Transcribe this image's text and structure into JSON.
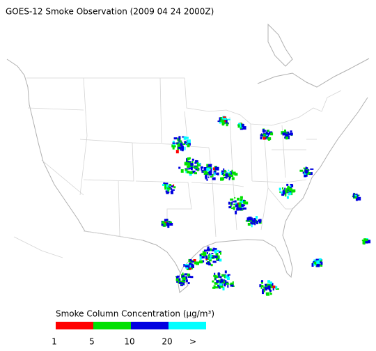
{
  "title": "GOES-12 Smoke Observation (2009 04 24  2000Z)",
  "legend": {
    "title": "Smoke Column Concentration (μg/m³)",
    "colors": [
      "#ff0000",
      "#00e000",
      "#0000e0",
      "#00ffff"
    ],
    "labels": [
      "1",
      "5",
      "10",
      "20",
      ">"
    ]
  }
}
